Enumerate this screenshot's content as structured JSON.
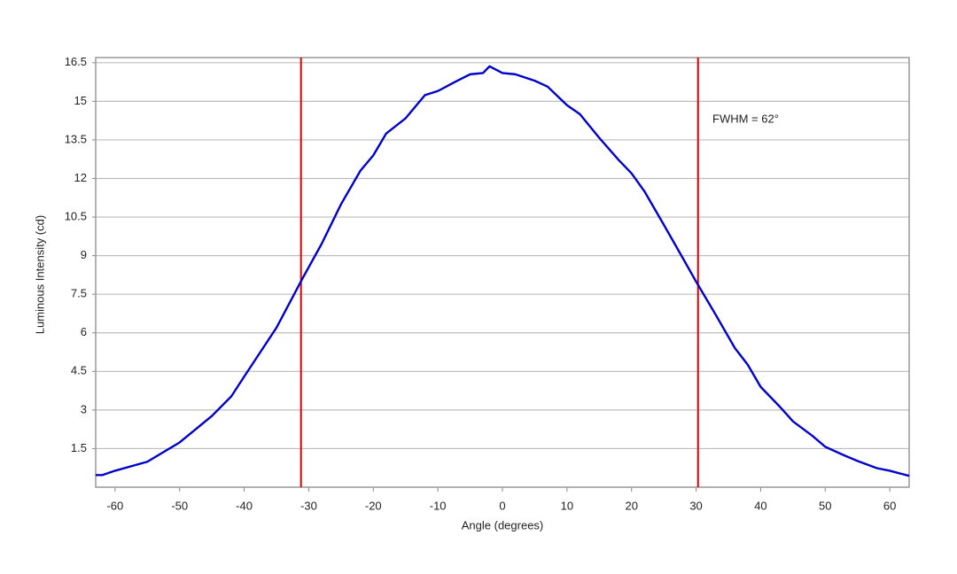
{
  "chart_data": {
    "type": "line",
    "xlabel": "Angle (degrees)",
    "ylabel": "Luminous Intensity (cd)",
    "annotation": "FWHM = 62°",
    "x": [
      -63,
      -62,
      -60,
      -55,
      -50,
      -45,
      -42,
      -40,
      -35,
      -31,
      -28,
      -25,
      -22,
      -20,
      -18,
      -15,
      -12,
      -10,
      -7,
      -5,
      -3,
      -2,
      0,
      2,
      5,
      7,
      10,
      12,
      15,
      18,
      20,
      22,
      25,
      28,
      30,
      33,
      36,
      38,
      40,
      43,
      45,
      48,
      50,
      53,
      55,
      58,
      60,
      63
    ],
    "series": [
      {
        "color": "#0000cc",
        "values": [
          0.47,
          0.47,
          0.64,
          0.99,
          1.74,
          2.77,
          3.53,
          4.3,
          6.2,
          8.1,
          9.46,
          11.0,
          12.3,
          12.9,
          13.75,
          14.34,
          15.24,
          15.4,
          15.8,
          16.05,
          16.1,
          16.36,
          16.1,
          16.05,
          15.8,
          15.57,
          14.85,
          14.5,
          13.58,
          12.72,
          12.2,
          11.5,
          10.2,
          8.88,
          7.99,
          6.72,
          5.41,
          4.76,
          3.9,
          3.12,
          2.56,
          2.0,
          1.57,
          1.23,
          1.02,
          0.74,
          0.64,
          0.44
        ]
      }
    ],
    "vlines": [
      {
        "value": -31.2,
        "color": "#e00000"
      },
      {
        "value": 30.3,
        "color": "#e00000"
      }
    ],
    "xlim": [
      -63,
      63
    ],
    "ylim": [
      0,
      16.7
    ],
    "xticks": [
      -60,
      -50,
      -40,
      -30,
      -20,
      -10,
      0,
      10,
      20,
      30,
      40,
      50,
      60
    ],
    "yticks": [
      1.5,
      3,
      4.5,
      6,
      7.5,
      9,
      10.5,
      12,
      13.5,
      15,
      16.5
    ],
    "grid": true
  }
}
